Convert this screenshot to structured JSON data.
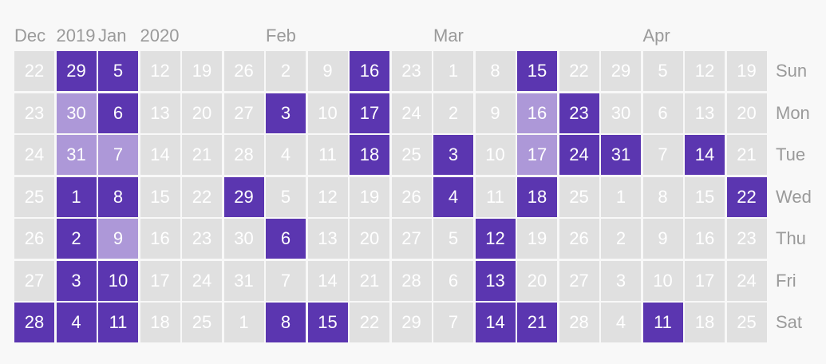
{
  "month_labels": [
    {
      "text": "Dec",
      "col": 0
    },
    {
      "text": "2019",
      "col": 1
    },
    {
      "text": "Jan",
      "col": 2
    },
    {
      "text": "2020",
      "col": 3
    },
    {
      "text": "Feb",
      "col": 6
    },
    {
      "text": "Mar",
      "col": 10
    },
    {
      "text": "Apr",
      "col": 15
    }
  ],
  "weekdays": [
    "Sun",
    "Mon",
    "Tue",
    "Wed",
    "Thu",
    "Fri",
    "Sat"
  ],
  "days": [
    [
      "22",
      "29",
      "5",
      "12",
      "19",
      "26",
      "2",
      "9",
      "16",
      "23",
      "1",
      "8",
      "15",
      "22",
      "29",
      "5",
      "12",
      "19"
    ],
    [
      "23",
      "30",
      "6",
      "13",
      "20",
      "27",
      "3",
      "10",
      "17",
      "24",
      "2",
      "9",
      "16",
      "23",
      "30",
      "6",
      "13",
      "20"
    ],
    [
      "24",
      "31",
      "7",
      "14",
      "21",
      "28",
      "4",
      "11",
      "18",
      "25",
      "3",
      "10",
      "17",
      "24",
      "31",
      "7",
      "14",
      "21"
    ],
    [
      "25",
      "1",
      "8",
      "15",
      "22",
      "29",
      "5",
      "12",
      "19",
      "26",
      "4",
      "11",
      "18",
      "25",
      "1",
      "8",
      "15",
      "22"
    ],
    [
      "26",
      "2",
      "9",
      "16",
      "23",
      "30",
      "6",
      "13",
      "20",
      "27",
      "5",
      "12",
      "19",
      "26",
      "2",
      "9",
      "16",
      "23"
    ],
    [
      "27",
      "3",
      "10",
      "17",
      "24",
      "31",
      "7",
      "14",
      "21",
      "28",
      "6",
      "13",
      "20",
      "27",
      "3",
      "10",
      "17",
      "24"
    ],
    [
      "28",
      "4",
      "11",
      "18",
      "25",
      "1",
      "8",
      "15",
      "22",
      "29",
      "7",
      "14",
      "21",
      "28",
      "4",
      "11",
      "18",
      "25"
    ]
  ],
  "levels": [
    [
      0,
      2,
      2,
      0,
      0,
      0,
      0,
      0,
      2,
      0,
      0,
      0,
      2,
      0,
      0,
      0,
      0,
      0
    ],
    [
      0,
      1,
      2,
      0,
      0,
      0,
      2,
      0,
      2,
      0,
      0,
      0,
      1,
      2,
      0,
      0,
      0,
      0
    ],
    [
      0,
      1,
      1,
      0,
      0,
      0,
      0,
      0,
      2,
      0,
      2,
      0,
      1,
      2,
      2,
      0,
      2,
      0
    ],
    [
      0,
      2,
      2,
      0,
      0,
      2,
      0,
      0,
      0,
      0,
      2,
      0,
      2,
      0,
      0,
      0,
      0,
      2
    ],
    [
      0,
      2,
      1,
      0,
      0,
      0,
      2,
      0,
      0,
      0,
      0,
      2,
      0,
      0,
      0,
      0,
      0,
      0
    ],
    [
      0,
      2,
      2,
      0,
      0,
      0,
      0,
      0,
      0,
      0,
      0,
      2,
      0,
      0,
      0,
      0,
      0,
      0
    ],
    [
      2,
      2,
      2,
      0,
      0,
      0,
      2,
      2,
      0,
      0,
      0,
      2,
      2,
      0,
      0,
      2,
      0,
      0
    ]
  ],
  "colors": {
    "none": "#e0e0e0",
    "light": "#ad98d8",
    "dark": "#5b36b0",
    "label": "#9a9a9a",
    "background": "#f8f8f8"
  }
}
